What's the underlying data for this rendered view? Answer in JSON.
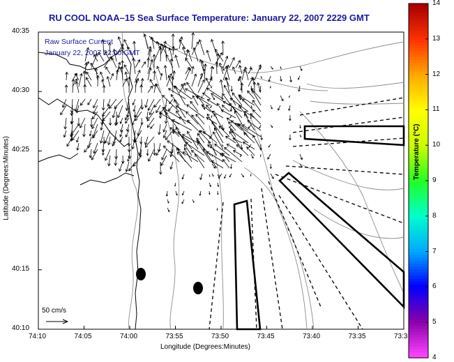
{
  "title": "RU COOL  NOAA–15  Sea Surface Temperature:  January 22, 2007 2229 GMT",
  "legend": {
    "line1": "Raw Surface Current",
    "line2": "January 22, 2007 22:00 GMT"
  },
  "axes": {
    "xlabel": "Longitude (Degrees:Minutes)",
    "ylabel": "Latitude (Degrees:Minutes)",
    "x_ticks": [
      "74:10",
      "74:05",
      "74:00",
      "73:55",
      "73:50",
      "73:45",
      "73:40",
      "73:35",
      "73:3"
    ],
    "y_ticks": [
      "40:35",
      "40:30",
      "40:25",
      "40:20",
      "40:15",
      "40:10"
    ]
  },
  "scale": {
    "label": "50 cm/s"
  },
  "colorbar": {
    "label": "Temperature (°C)",
    "ticks": [
      "14",
      "13",
      "12",
      "11",
      "10",
      "9",
      "8",
      "7",
      "6",
      "5",
      "4"
    ],
    "range": [
      4,
      14
    ],
    "colors": [
      "#ff44ff",
      "#8800aa",
      "#0000ff",
      "#00aaff",
      "#00ffcc",
      "#22ff22",
      "#ccff00",
      "#ffff00",
      "#ffaa00",
      "#ff3300",
      "#aa0000"
    ]
  }
}
